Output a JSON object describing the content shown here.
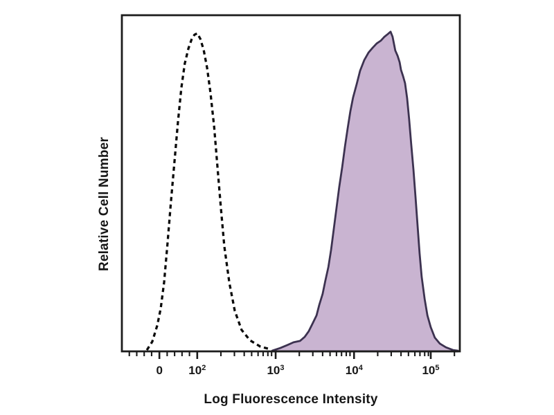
{
  "figure": {
    "background": "#ffffff",
    "plot_border_color": "#1c1c1c",
    "tick_color": "#1a1a1a"
  },
  "chart_data": {
    "type": "area",
    "subtype": "flow-cytometry-histogram-overlay",
    "title": "",
    "xlabel": "Log Fluorescence Intensity",
    "ylabel": "Relative Cell Number",
    "grid": false,
    "legend": null,
    "x_scale": "biexponential log (decades 10^2 to 10^5 with 0 region at left)",
    "ylim": [
      0,
      1
    ],
    "x_ticks_major": [
      {
        "base": "0",
        "exp": "",
        "pos": 0.111
      },
      {
        "base": "10",
        "exp": "2",
        "pos": 0.223
      },
      {
        "base": "10",
        "exp": "3",
        "pos": 0.455
      },
      {
        "base": "10",
        "exp": "4",
        "pos": 0.687
      },
      {
        "base": "10",
        "exp": "5",
        "pos": 0.914
      }
    ],
    "x_ticks_minor": [
      0.022,
      0.044,
      0.066,
      0.088,
      0.134,
      0.156,
      0.178,
      0.2,
      0.293,
      0.333,
      0.362,
      0.384,
      0.403,
      0.418,
      0.432,
      0.443,
      0.525,
      0.565,
      0.594,
      0.616,
      0.635,
      0.65,
      0.664,
      0.675,
      0.757,
      0.797,
      0.826,
      0.848,
      0.867,
      0.882,
      0.896,
      0.907,
      0.984
    ],
    "series": [
      {
        "name": "dashed-open-histogram",
        "style": "dashed",
        "stroke": "#0a0a0a",
        "fill": "none",
        "peak_x_value": "~1x10^2",
        "peak_height": 0.946,
        "points": [
          [
            0.074,
            0.004
          ],
          [
            0.09,
            0.029
          ],
          [
            0.105,
            0.078
          ],
          [
            0.115,
            0.128
          ],
          [
            0.125,
            0.206
          ],
          [
            0.135,
            0.321
          ],
          [
            0.145,
            0.444
          ],
          [
            0.156,
            0.568
          ],
          [
            0.166,
            0.683
          ],
          [
            0.176,
            0.784
          ],
          [
            0.186,
            0.856
          ],
          [
            0.197,
            0.901
          ],
          [
            0.207,
            0.93
          ],
          [
            0.215,
            0.942
          ],
          [
            0.223,
            0.946
          ],
          [
            0.232,
            0.93
          ],
          [
            0.242,
            0.897
          ],
          [
            0.252,
            0.844
          ],
          [
            0.262,
            0.77
          ],
          [
            0.273,
            0.669
          ],
          [
            0.283,
            0.547
          ],
          [
            0.293,
            0.426
          ],
          [
            0.303,
            0.313
          ],
          [
            0.318,
            0.204
          ],
          [
            0.334,
            0.121
          ],
          [
            0.354,
            0.064
          ],
          [
            0.379,
            0.033
          ],
          [
            0.41,
            0.014
          ],
          [
            0.441,
            0.006
          ]
        ]
      },
      {
        "name": "filled-purple-histogram",
        "style": "filled",
        "stroke": "#3c3250",
        "fill": "#c9b4d1",
        "peak_x_value": "~3x10^4",
        "peak_height": 0.951,
        "points": [
          [
            0.445,
            0.002
          ],
          [
            0.469,
            0.01
          ],
          [
            0.49,
            0.019
          ],
          [
            0.508,
            0.027
          ],
          [
            0.527,
            0.031
          ],
          [
            0.541,
            0.043
          ],
          [
            0.553,
            0.06
          ],
          [
            0.563,
            0.08
          ],
          [
            0.576,
            0.107
          ],
          [
            0.584,
            0.138
          ],
          [
            0.594,
            0.171
          ],
          [
            0.602,
            0.21
          ],
          [
            0.611,
            0.251
          ],
          [
            0.619,
            0.302
          ],
          [
            0.627,
            0.364
          ],
          [
            0.635,
            0.426
          ],
          [
            0.643,
            0.488
          ],
          [
            0.652,
            0.549
          ],
          [
            0.66,
            0.609
          ],
          [
            0.668,
            0.663
          ],
          [
            0.676,
            0.714
          ],
          [
            0.684,
            0.755
          ],
          [
            0.695,
            0.796
          ],
          [
            0.705,
            0.835
          ],
          [
            0.717,
            0.866
          ],
          [
            0.73,
            0.889
          ],
          [
            0.742,
            0.903
          ],
          [
            0.754,
            0.916
          ],
          [
            0.766,
            0.924
          ],
          [
            0.777,
            0.936
          ],
          [
            0.787,
            0.944
          ],
          [
            0.795,
            0.951
          ],
          [
            0.801,
            0.936
          ],
          [
            0.805,
            0.916
          ],
          [
            0.809,
            0.895
          ],
          [
            0.816,
            0.879
          ],
          [
            0.822,
            0.86
          ],
          [
            0.826,
            0.837
          ],
          [
            0.832,
            0.819
          ],
          [
            0.838,
            0.798
          ],
          [
            0.844,
            0.753
          ],
          [
            0.85,
            0.691
          ],
          [
            0.856,
            0.619
          ],
          [
            0.863,
            0.539
          ],
          [
            0.869,
            0.457
          ],
          [
            0.875,
            0.374
          ],
          [
            0.881,
            0.292
          ],
          [
            0.887,
            0.222
          ],
          [
            0.896,
            0.156
          ],
          [
            0.904,
            0.107
          ],
          [
            0.914,
            0.072
          ],
          [
            0.926,
            0.041
          ],
          [
            0.941,
            0.023
          ],
          [
            0.959,
            0.012
          ],
          [
            0.98,
            0.004
          ],
          [
            0.994,
            0.002
          ]
        ]
      }
    ]
  }
}
